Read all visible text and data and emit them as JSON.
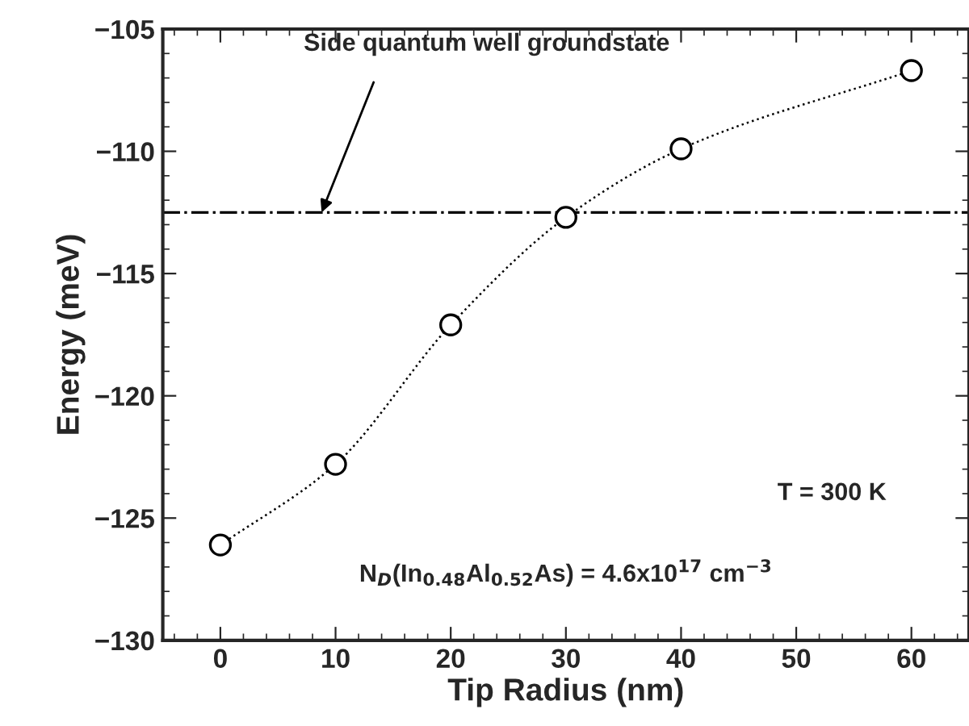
{
  "chart_data": {
    "type": "line",
    "xlabel": "Tip Radius (nm)",
    "ylabel": "Energy (meV)",
    "x": [
      0,
      10,
      20,
      30,
      40,
      60
    ],
    "series": [
      {
        "color": "#000000",
        "values": [
          -126.1,
          -122.8,
          -117.1,
          -112.7,
          -109.9,
          -106.7
        ]
      }
    ],
    "marker": "circle",
    "line_style": "dotted",
    "xlim": [
      -5,
      65
    ],
    "xticks": [
      0,
      10,
      20,
      30,
      40,
      50,
      60
    ],
    "ylim": [
      -130,
      -105
    ],
    "yticks": [
      -130,
      -125,
      -120,
      -115,
      -110,
      -105
    ],
    "ref_lines": [
      {
        "axis": "y",
        "value": -112.5,
        "label": "Side quantum well groundstate",
        "line_style": "dashdot",
        "color": "#000000"
      }
    ],
    "annotations": [
      "T = 300 K",
      "N$_{D}$(In$_{0.48}$Al$_{0.52}$As) = 4.6x10$^{17}$ cm$^{−3}$"
    ],
    "grid": false,
    "legend": false
  }
}
